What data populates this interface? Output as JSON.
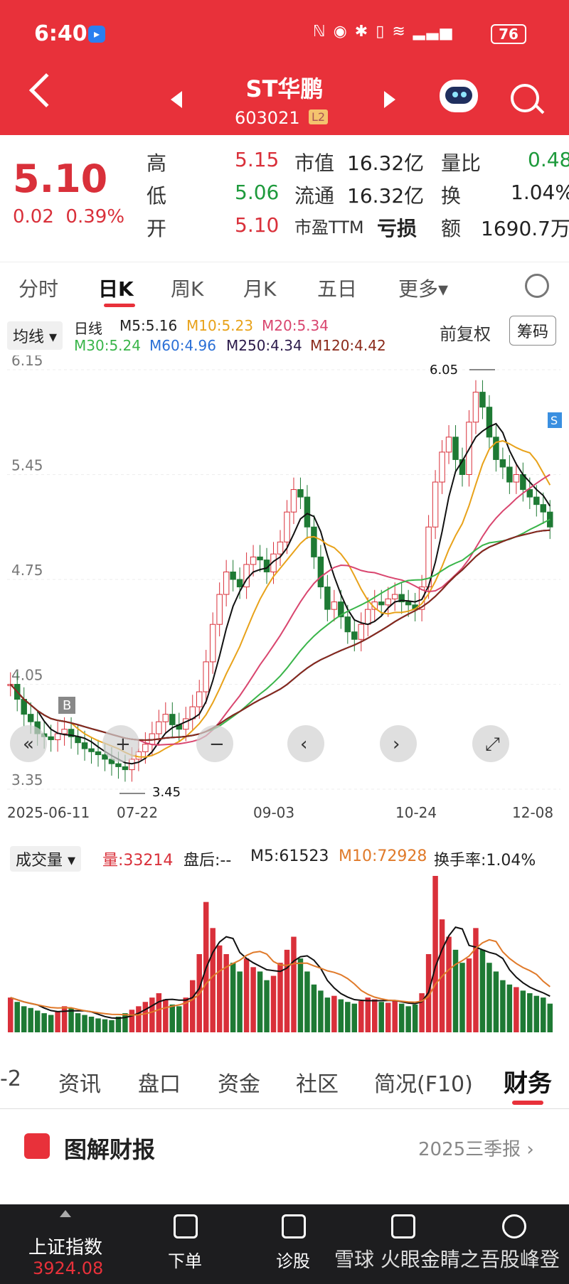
{
  "status": {
    "time": "6:40",
    "battery": "76"
  },
  "header": {
    "title": "ST华鹏",
    "code": "603021",
    "level_badge": "L2"
  },
  "quote": {
    "price": "5.10",
    "change": "0.02",
    "change_pct": "0.39%",
    "high_label": "高",
    "high": "5.15",
    "low_label": "低",
    "low": "5.06",
    "open_label": "开",
    "open": "5.10",
    "mktcap_label": "市值",
    "mktcap": "16.32亿",
    "float_label": "流通",
    "float": "16.32亿",
    "pe_label": "市盈TTM",
    "pe": "亏损",
    "volratio_label": "量比",
    "volratio": "0.48",
    "turnover_label": "换",
    "turnover": "1.04%",
    "amount_label": "额",
    "amount": "1690.7万"
  },
  "tabs": [
    {
      "label": "分时"
    },
    {
      "label": "日K"
    },
    {
      "label": "周K"
    },
    {
      "label": "月K"
    },
    {
      "label": "五日"
    },
    {
      "label": "更多▾"
    }
  ],
  "ma_labels": {
    "selector": "均线 ▾",
    "line1": [
      "日线",
      "M5:5.16",
      "M10:5.23",
      "M20:5.34"
    ],
    "line2": [
      "M30:5.24",
      "M60:4.96",
      "M250:4.34",
      "M120:4.42"
    ],
    "fuquan": "前复权",
    "chouma": "筹码"
  },
  "chart_data": [
    {
      "type": "candlestick",
      "y_ticks": [
        "6.15",
        "5.45",
        "4.75",
        "4.05",
        "3.35"
      ],
      "ylim": [
        3.35,
        6.15
      ],
      "x_ticks": [
        "2025-06-11",
        "07-22",
        "09-03",
        "10-24",
        "12-08"
      ],
      "annotations": [
        "6.05",
        "3.45"
      ],
      "markers": [
        "B",
        "S"
      ],
      "closes": [
        4.05,
        3.95,
        3.85,
        3.8,
        3.72,
        3.7,
        3.68,
        3.72,
        3.75,
        3.7,
        3.66,
        3.62,
        3.6,
        3.58,
        3.55,
        3.52,
        3.5,
        3.48,
        3.55,
        3.6,
        3.65,
        3.72,
        3.8,
        3.85,
        3.78,
        3.75,
        3.82,
        3.9,
        4.0,
        4.2,
        4.45,
        4.65,
        4.8,
        4.75,
        4.7,
        4.85,
        4.9,
        4.88,
        4.8,
        4.92,
        5.0,
        5.2,
        5.35,
        5.3,
        5.1,
        4.9,
        4.7,
        4.55,
        4.6,
        4.5,
        4.4,
        4.35,
        4.45,
        4.55,
        4.6,
        4.58,
        4.62,
        4.65,
        4.6,
        4.58,
        4.55,
        4.7,
        5.1,
        5.4,
        5.6,
        5.7,
        5.55,
        5.45,
        5.8,
        6.0,
        5.9,
        5.7,
        5.55,
        5.5,
        5.4,
        5.45,
        5.35,
        5.3,
        5.25,
        5.2,
        5.1
      ],
      "ma_series": [
        {
          "name": "M5",
          "color": "#111111"
        },
        {
          "name": "M10",
          "color": "#e8a21a"
        },
        {
          "name": "M20",
          "color": "#d9466f"
        },
        {
          "name": "M30",
          "color": "#3ab54a"
        },
        {
          "name": "M60",
          "color": "#2a6fd6"
        },
        {
          "name": "M250",
          "color": "#2b1a4a"
        },
        {
          "name": "M120",
          "color": "#8b2a1a"
        }
      ]
    },
    {
      "type": "bar",
      "volumes": [
        40,
        35,
        30,
        28,
        25,
        22,
        20,
        24,
        30,
        28,
        22,
        20,
        18,
        16,
        15,
        14,
        18,
        22,
        26,
        30,
        35,
        40,
        45,
        38,
        32,
        30,
        40,
        60,
        90,
        150,
        120,
        100,
        90,
        80,
        70,
        85,
        75,
        70,
        60,
        65,
        80,
        95,
        110,
        85,
        70,
        55,
        48,
        40,
        42,
        38,
        35,
        33,
        36,
        40,
        38,
        35,
        34,
        36,
        33,
        30,
        32,
        45,
        90,
        180,
        130,
        110,
        95,
        80,
        85,
        120,
        95,
        80,
        70,
        60,
        55,
        52,
        48,
        45,
        42,
        40,
        33
      ]
    }
  ],
  "volume": {
    "selector": "成交量 ▾",
    "vol_label": "量:33214",
    "after_label": "盘后:--",
    "m5": "M5:61523",
    "m10": "M10:72928",
    "turnover": "换手率:1.04%"
  },
  "subtabs": [
    {
      "label": "-2"
    },
    {
      "label": "资讯"
    },
    {
      "label": "盘口"
    },
    {
      "label": "资金"
    },
    {
      "label": "社区"
    },
    {
      "label": "简况(F10)"
    },
    {
      "label": "财务"
    }
  ],
  "report": {
    "title": "图解财报",
    "period": "2025三季报 ›"
  },
  "bottom": {
    "index_name": "上证指数",
    "index_value": "3924.08",
    "order_label": "下单",
    "diagnose_label": "诊股",
    "watermark": "雪球 火眼金睛之吾股峰登"
  },
  "colors": {
    "accent": "#e8313a",
    "up": "#d9303a",
    "down": "#1e9a3c"
  }
}
